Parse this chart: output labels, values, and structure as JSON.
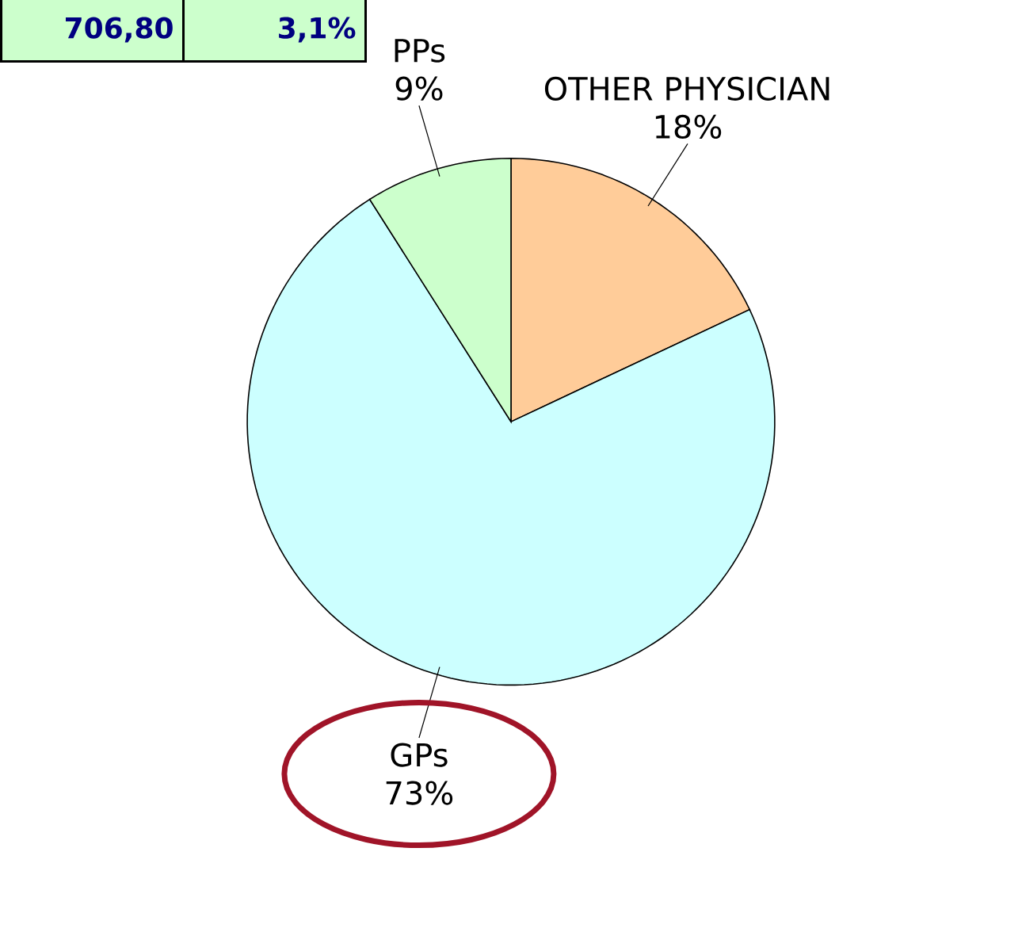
{
  "chart_data": {
    "type": "pie",
    "categories": [
      "OTHER PHYSICIAN",
      "GPs",
      "PPs"
    ],
    "values": [
      18,
      73,
      9
    ],
    "colors": [
      "#ffcc99",
      "#ccffff",
      "#ccffcc"
    ],
    "value_labels": [
      "18%",
      "73%",
      "9%"
    ],
    "annotations": [
      "706,80",
      "3,1%"
    ]
  }
}
